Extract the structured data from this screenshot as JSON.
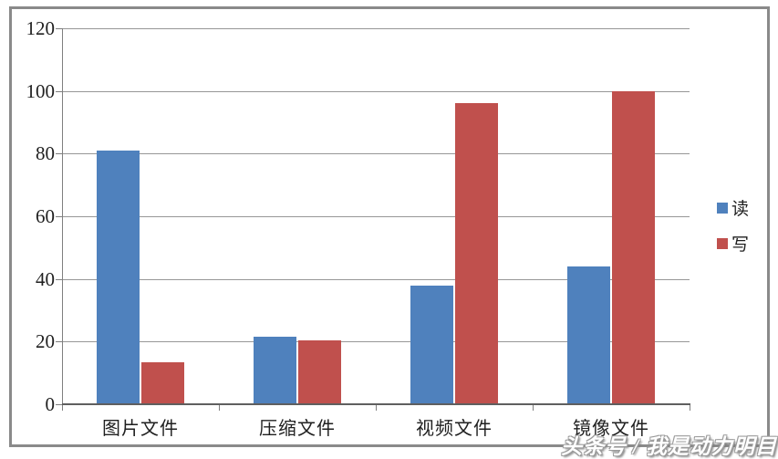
{
  "chart_data": {
    "type": "bar",
    "title": "",
    "xlabel": "",
    "ylabel": "",
    "categories": [
      "图片文件",
      "压缩文件",
      "视频文件",
      "镜像文件"
    ],
    "series": [
      {
        "name": "读",
        "color": "#4F81BD",
        "values": [
          81,
          21.5,
          38,
          44
        ]
      },
      {
        "name": "写",
        "color": "#C0504D",
        "values": [
          13.5,
          20.5,
          96,
          100
        ]
      }
    ],
    "yticks": [
      0,
      20,
      40,
      60,
      80,
      100,
      120
    ],
    "ylim": [
      0,
      120
    ],
    "grid": true,
    "legend_position": "right"
  },
  "watermark": {
    "text": "头条号 / 我是动力明目"
  },
  "colors": {
    "series_read": "#4F81BD",
    "series_write": "#C0504D",
    "gridline": "#979797",
    "axis": "#5f5f5f",
    "frame_border": "#8a8a8a",
    "label_text": "#1f1f1f",
    "background": "#ffffff"
  }
}
